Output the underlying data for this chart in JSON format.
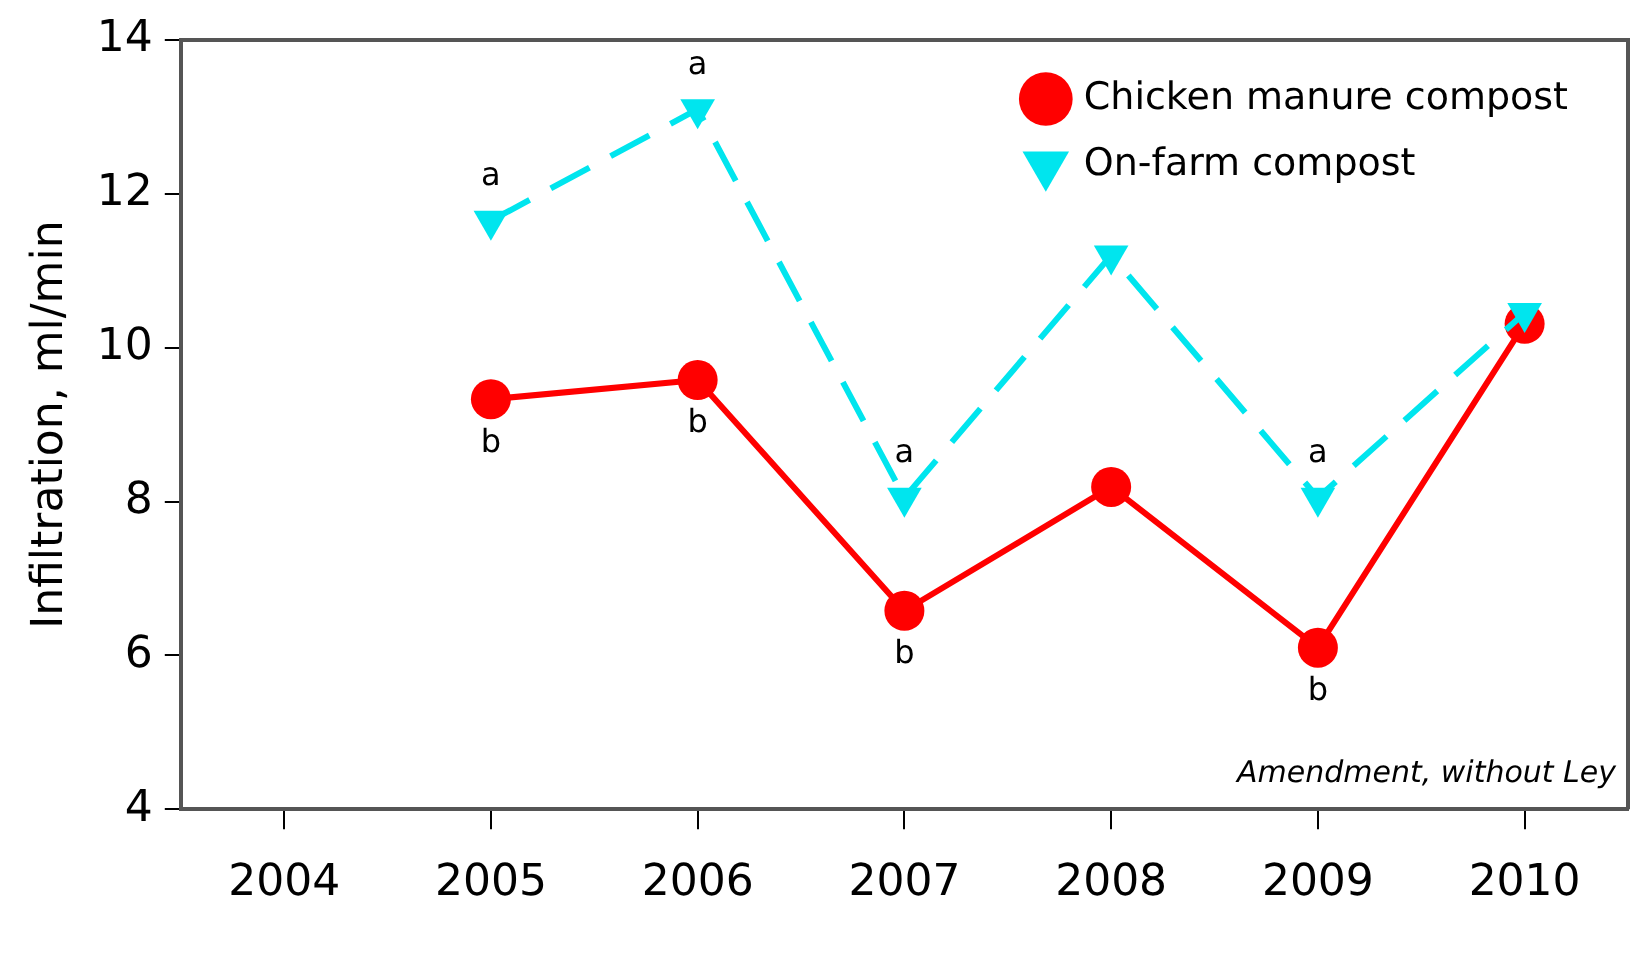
{
  "chart_data": {
    "type": "line",
    "ylabel": "Infiltration, ml/min",
    "x": [
      2005,
      2006,
      2007,
      2008,
      2009,
      2010
    ],
    "xlim": [
      2003.5,
      2010.5
    ],
    "xticks": [
      2004,
      2005,
      2006,
      2007,
      2008,
      2009,
      2010
    ],
    "ylim": [
      4,
      14
    ],
    "yticks": [
      4,
      6,
      8,
      10,
      12,
      14
    ],
    "grid": false,
    "legend": "top right",
    "series": [
      {
        "name": "Chicken manure compost",
        "color": "#ff0000",
        "marker": "circle",
        "line_style": "solid",
        "values": [
          9.33,
          9.58,
          6.58,
          8.19,
          6.1,
          10.31
        ]
      },
      {
        "name": "On-farm compost",
        "color": "#00e5ee",
        "marker": "triangle",
        "line_style": "dashed",
        "values": [
          11.65,
          13.1,
          8.05,
          11.2,
          8.05,
          10.45
        ]
      }
    ],
    "annotations": [
      {
        "text": "a",
        "x": 2005,
        "y": 11.65
      },
      {
        "text": "a",
        "x": 2006,
        "y": 13.1
      },
      {
        "text": "a",
        "x": 2007,
        "y": 8.05
      },
      {
        "text": "a",
        "x": 2009,
        "y": 8.05
      },
      {
        "text": "b",
        "x": 2005,
        "y": 9.33
      },
      {
        "text": "b",
        "x": 2006,
        "y": 9.58
      },
      {
        "text": "b",
        "x": 2007,
        "y": 6.58
      },
      {
        "text": "b",
        "x": 2009,
        "y": 6.1
      },
      "Amendment, without Ley"
    ]
  }
}
